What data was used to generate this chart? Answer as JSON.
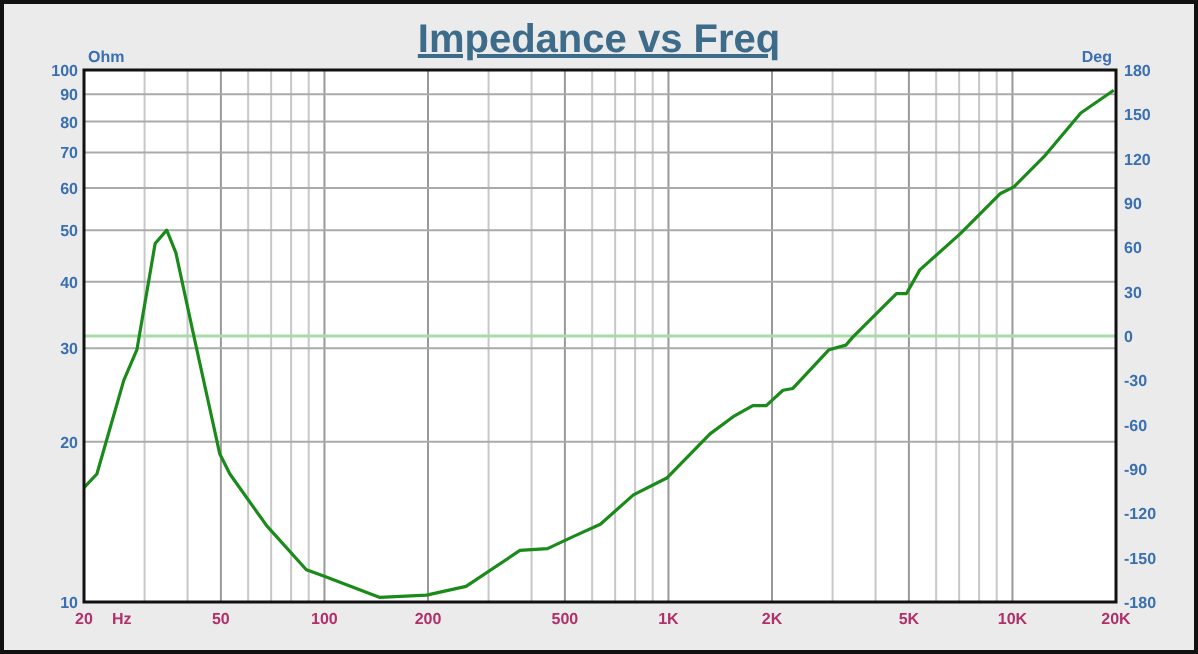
{
  "chart_data": {
    "type": "line",
    "title": "Impedance vs Freq",
    "xlabel": "Hz",
    "ylabel": "Ohm",
    "y2label": "Deg",
    "log": "xy",
    "grid": true,
    "marker": "none",
    "line_style": "solid",
    "xlim": [
      20,
      20000
    ],
    "ylim": [
      10,
      100
    ],
    "y2lim": [
      -180,
      180
    ],
    "xticks": [
      {
        "value": 20,
        "label": "20"
      },
      {
        "value": 30,
        "label": null
      },
      {
        "value": 40,
        "label": null
      },
      {
        "value": 50,
        "label": "50"
      },
      {
        "value": 60,
        "label": null
      },
      {
        "value": 70,
        "label": null
      },
      {
        "value": 80,
        "label": null
      },
      {
        "value": 90,
        "label": null
      },
      {
        "value": 100,
        "label": "100"
      },
      {
        "value": 200,
        "label": "200"
      },
      {
        "value": 300,
        "label": null
      },
      {
        "value": 400,
        "label": null
      },
      {
        "value": 500,
        "label": "500"
      },
      {
        "value": 600,
        "label": null
      },
      {
        "value": 700,
        "label": null
      },
      {
        "value": 800,
        "label": null
      },
      {
        "value": 900,
        "label": null
      },
      {
        "value": 1000,
        "label": "1K"
      },
      {
        "value": 2000,
        "label": "2K"
      },
      {
        "value": 3000,
        "label": null
      },
      {
        "value": 4000,
        "label": null
      },
      {
        "value": 5000,
        "label": "5K"
      },
      {
        "value": 6000,
        "label": null
      },
      {
        "value": 7000,
        "label": null
      },
      {
        "value": 8000,
        "label": null
      },
      {
        "value": 9000,
        "label": null
      },
      {
        "value": 10000,
        "label": "10K"
      },
      {
        "value": 20000,
        "label": "20K"
      }
    ],
    "yticks": [
      10,
      20,
      30,
      40,
      50,
      60,
      70,
      80,
      90,
      100
    ],
    "y2ticks": [
      -180,
      -150,
      -120,
      -90,
      -60,
      -30,
      0,
      30,
      60,
      90,
      120,
      150,
      180
    ],
    "ref_lines": [
      {
        "axis": "y2",
        "value": 0,
        "label": null,
        "color": "#a8dca8"
      }
    ],
    "series": [
      {
        "color": "#1a8a1a",
        "x": [
          20,
          21.8,
          26.1,
          28.5,
          32.2,
          34.8,
          37,
          41.6,
          49.6,
          53.1,
          68,
          88.6,
          99,
          145,
          198,
          258,
          370,
          445,
          532,
          634,
          791,
          989,
          1321,
          1542,
          1759,
          1925,
          2152,
          2300,
          2930,
          3280,
          3440,
          4600,
          4920,
          5380,
          7070,
          9230,
          10100,
          12350,
          15800,
          19700
        ],
        "values": [
          16.4,
          17.4,
          26.1,
          29.8,
          47.2,
          50,
          45.3,
          31.9,
          19,
          17.4,
          13.9,
          11.5,
          11.2,
          10.2,
          10.3,
          10.7,
          12.5,
          12.6,
          13.3,
          14,
          15.9,
          17.1,
          20.7,
          22.3,
          23.4,
          23.4,
          25,
          25.2,
          29.8,
          30.4,
          31.5,
          38,
          38,
          42.1,
          49.3,
          58.6,
          60.3,
          68.7,
          83,
          91.6
        ]
      }
    ]
  }
}
